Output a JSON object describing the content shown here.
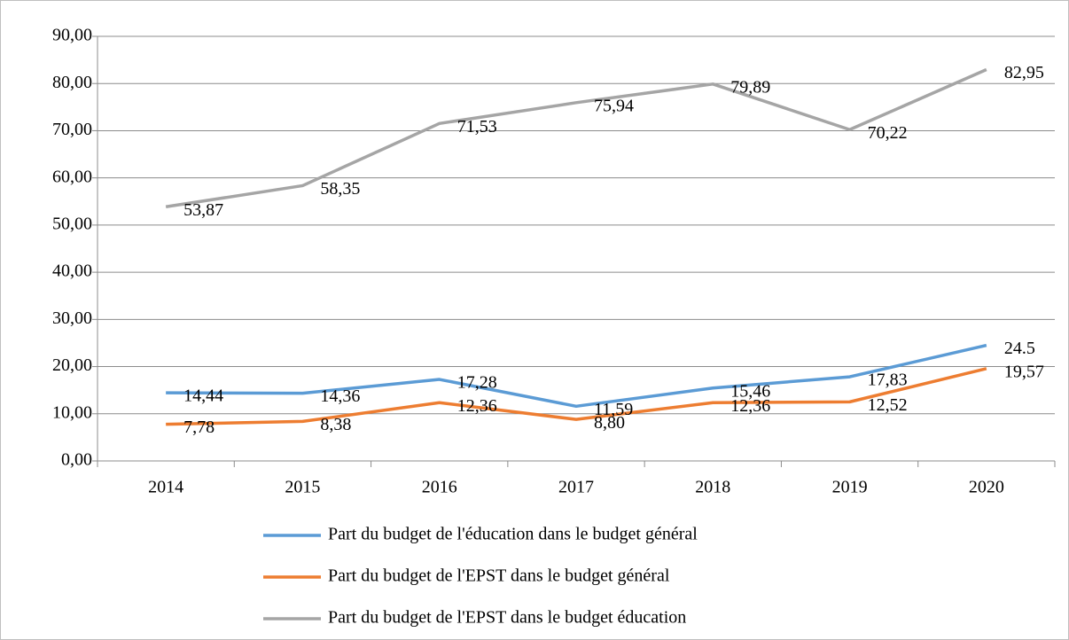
{
  "chart_data": {
    "type": "line",
    "categories": [
      "2014",
      "2015",
      "2016",
      "2017",
      "2018",
      "2019",
      "2020"
    ],
    "series": [
      {
        "name": "Part du budget de l'éducation dans le budget général",
        "color": "#5b9bd5",
        "values": [
          14.44,
          14.36,
          17.28,
          11.59,
          15.46,
          17.83,
          24.5
        ],
        "value_labels": [
          "14,44",
          "14,36",
          "17,28",
          "11,59",
          "15,46",
          "17,83",
          "24.5"
        ]
      },
      {
        "name": "Part du budget de l'EPST dans le budget général",
        "color": "#ed7d31",
        "values": [
          7.78,
          8.38,
          12.36,
          8.8,
          12.36,
          12.52,
          19.57
        ],
        "value_labels": [
          "7,78",
          "8,38",
          "12,36",
          "8,80",
          "12,36",
          "12,52",
          "19,57"
        ]
      },
      {
        "name": "Part du budget de l'EPST dans le budget éducation",
        "color": "#a5a5a5",
        "values": [
          53.87,
          58.35,
          71.53,
          75.94,
          79.89,
          70.22,
          82.95
        ],
        "value_labels": [
          "53,87",
          "58,35",
          "71,53",
          "75,94",
          "79,89",
          "70,22",
          "82,95"
        ]
      }
    ],
    "ylim": [
      0,
      90
    ],
    "yticks": [
      {
        "value": 0,
        "label": "0,00"
      },
      {
        "value": 10,
        "label": "10,00"
      },
      {
        "value": 20,
        "label": "20,00"
      },
      {
        "value": 30,
        "label": "30,00"
      },
      {
        "value": 40,
        "label": "40,00"
      },
      {
        "value": 50,
        "label": "50,00"
      },
      {
        "value": 60,
        "label": "60,00"
      },
      {
        "value": 70,
        "label": "70,00"
      },
      {
        "value": 80,
        "label": "80,00"
      },
      {
        "value": 90,
        "label": "90,00"
      }
    ],
    "grid": true,
    "legend": "bottom"
  }
}
